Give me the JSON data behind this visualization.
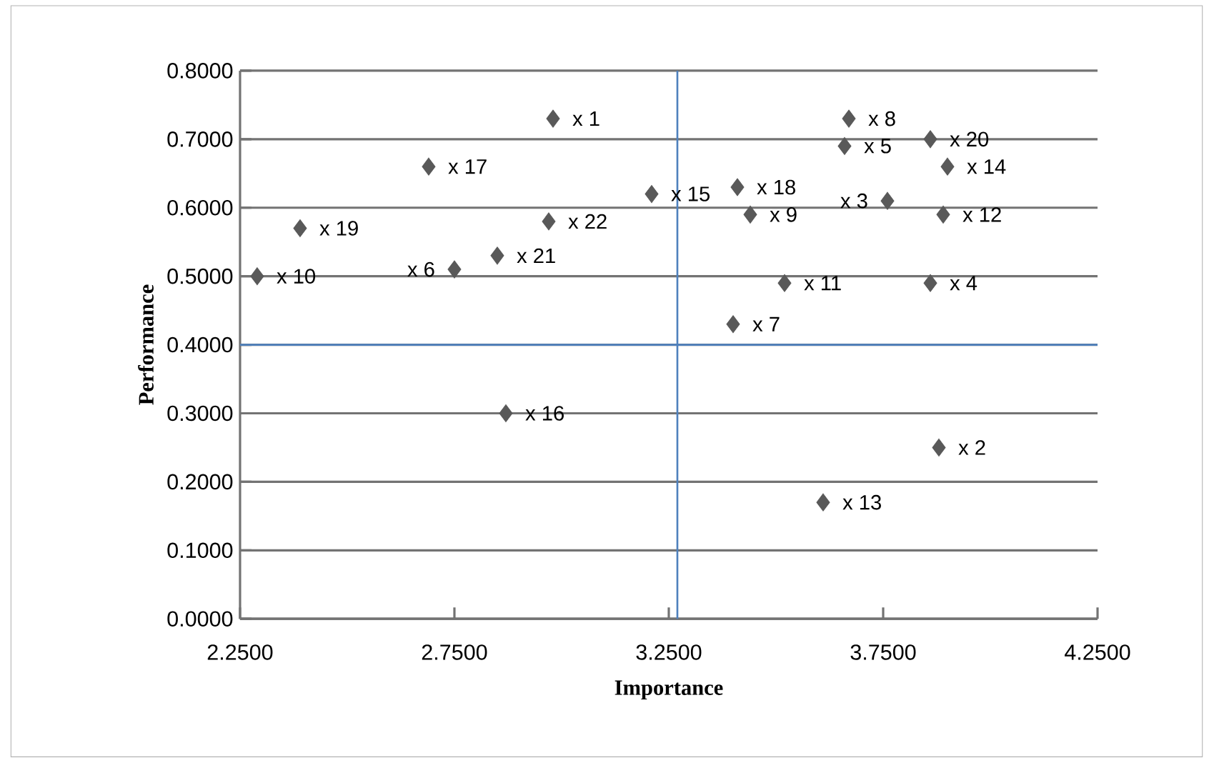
{
  "chart_data": {
    "type": "scatter",
    "xlabel": "Importance",
    "ylabel": "Performance",
    "color": "#595959",
    "marker": "diamond",
    "grid": "y",
    "xlim": [
      2.25,
      4.25
    ],
    "ylim": [
      0,
      0.8
    ],
    "xticks": [
      {
        "value": 2.25,
        "label": "2.2500"
      },
      {
        "value": 2.75,
        "label": "2.7500"
      },
      {
        "value": 3.25,
        "label": "3.2500"
      },
      {
        "value": 3.75,
        "label": "3.7500"
      },
      {
        "value": 4.25,
        "label": "4.2500"
      }
    ],
    "yticks": [
      {
        "value": 0,
        "label": "0.0000"
      },
      {
        "value": 0.1,
        "label": "0.1000"
      },
      {
        "value": 0.2,
        "label": "0.2000"
      },
      {
        "value": 0.3,
        "label": "0.3000"
      },
      {
        "value": 0.4,
        "label": "0.4000"
      },
      {
        "value": 0.5,
        "label": "0.5000"
      },
      {
        "value": 0.6,
        "label": "0.6000"
      },
      {
        "value": 0.7,
        "label": "0.7000"
      },
      {
        "value": 0.8,
        "label": "0.8000"
      }
    ],
    "x": [
      2.98,
      2.69,
      2.97,
      2.39,
      2.75,
      2.85,
      2.29,
      3.21,
      3.86,
      2.87,
      3.41,
      3.66,
      3.86,
      3.9,
      3.44,
      3.76,
      3.67,
      3.89,
      3.52,
      3.4,
      3.88,
      3.61
    ],
    "values": [
      0.73,
      0.66,
      0.58,
      0.57,
      0.51,
      0.53,
      0.5,
      0.62,
      0.49,
      0.3,
      0.63,
      0.69,
      0.7,
      0.66,
      0.59,
      0.61,
      0.73,
      0.59,
      0.49,
      0.43,
      0.25,
      0.17
    ],
    "ref_lines": [
      {
        "axis": "x",
        "value": 3.27,
        "color": "#4f81bd"
      },
      {
        "axis": "y",
        "value": 0.4,
        "color": "#4f81bd"
      }
    ],
    "annotations": [
      "x 1",
      "x 17",
      "x 22",
      "x 19",
      "x 6",
      "x 21",
      "x 10",
      "x 15",
      "x 4",
      "x 16",
      "x 18",
      "x 5",
      "x 20",
      "x 14",
      "x 9",
      "x 3",
      "x 8",
      "x 12",
      "x 11",
      "x 7",
      "x 2",
      "x 13"
    ]
  }
}
